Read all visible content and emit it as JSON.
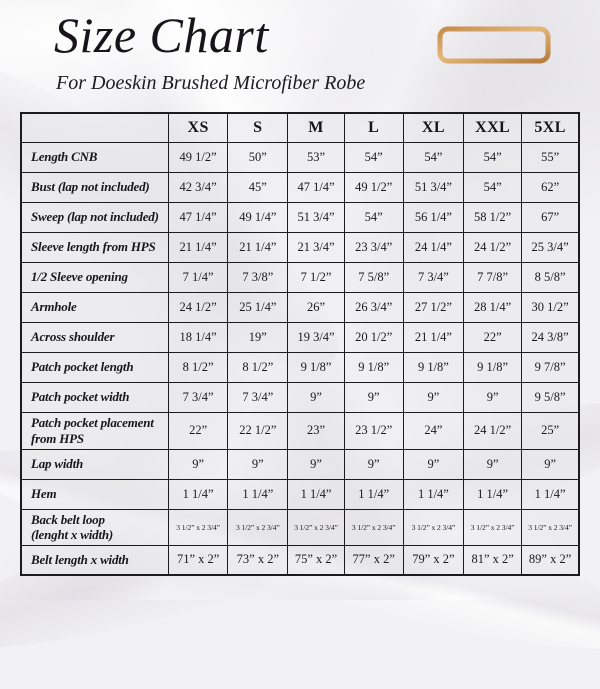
{
  "page": {
    "title": "Size Chart",
    "subtitle": "For Doeskin Brushed Microfiber Robe"
  },
  "colors": {
    "accent_gold_dark": "#b67c3e",
    "accent_gold_light": "#e4b87a",
    "table_border": "#1c1b1f",
    "background": "#f2f1f3",
    "text": "#1b1a1e"
  },
  "icons": {
    "ruler": "ruler-icon"
  },
  "chart_data": {
    "type": "table",
    "title": "Size Chart",
    "subtitle": "For Doeskin Brushed Microfiber Robe",
    "columns": [
      "",
      "XS",
      "S",
      "M",
      "L",
      "XL",
      "XXL",
      "5XL"
    ],
    "rows": [
      {
        "label": "Length CNB",
        "values": [
          "49 1/2”",
          "50”",
          "53”",
          "54”",
          "54”",
          "54”",
          "55”"
        ]
      },
      {
        "label": "Bust (lap not included)",
        "values": [
          "42 3/4”",
          "45”",
          "47 1/4”",
          "49 1/2”",
          "51 3/4”",
          "54”",
          "62”"
        ]
      },
      {
        "label": "Sweep (lap not included)",
        "values": [
          "47 1/4”",
          "49 1/4”",
          "51 3/4”",
          "54”",
          "56 1/4”",
          "58 1/2”",
          "67”"
        ]
      },
      {
        "label": "Sleeve length from HPS",
        "values": [
          "21 1/4”",
          "21 1/4”",
          "21 3/4”",
          "23 3/4”",
          "24 1/4”",
          "24 1/2”",
          "25 3/4”"
        ]
      },
      {
        "label": "1/2 Sleeve opening",
        "values": [
          "7 1/4”",
          "7 3/8”",
          "7 1/2”",
          "7 5/8”",
          "7 3/4”",
          "7 7/8”",
          "8 5/8”"
        ]
      },
      {
        "label": "Armhole",
        "values": [
          "24 1/2”",
          "25 1/4”",
          "26”",
          "26 3/4”",
          "27 1/2”",
          "28 1/4”",
          "30 1/2”"
        ]
      },
      {
        "label": "Across shoulder",
        "values": [
          "18 1/4”",
          "19”",
          "19 3/4”",
          "20 1/2”",
          "21 1/4”",
          "22”",
          "24 3/8”"
        ]
      },
      {
        "label": "Patch pocket length",
        "values": [
          "8 1/2”",
          "8 1/2”",
          "9 1/8”",
          "9 1/8”",
          "9 1/8”",
          "9 1/8”",
          "9 7/8”"
        ]
      },
      {
        "label": "Patch pocket width",
        "values": [
          "7 3/4”",
          "7 3/4”",
          "9”",
          "9”",
          "9”",
          "9”",
          "9 5/8”"
        ]
      },
      {
        "label": "Patch pocket placement\nfrom HPS",
        "values": [
          "22”",
          "22 1/2”",
          "23”",
          "23 1/2”",
          "24”",
          "24 1/2”",
          "25”"
        ]
      },
      {
        "label": "Lap width",
        "values": [
          "9”",
          "9”",
          "9”",
          "9”",
          "9”",
          "9”",
          "9”"
        ]
      },
      {
        "label": "Hem",
        "values": [
          "1 1/4”",
          "1 1/4”",
          "1 1/4”",
          "1 1/4”",
          "1 1/4”",
          "1 1/4”",
          "1 1/4”"
        ]
      },
      {
        "label": "Back belt loop\n(lenght x width)",
        "values": [
          "3 1/2” x 2 3/4”",
          "3 1/2” x 2 3/4”",
          "3 1/2” x 2 3/4”",
          "3 1/2” x 2 3/4”",
          "3 1/2” x 2 3/4”",
          "3 1/2” x 2 3/4”",
          "3 1/2” x 2 3/4”"
        ]
      },
      {
        "label": "Belt length x width",
        "values": [
          "71” x 2”",
          "73” x 2”",
          "75” x 2”",
          "77” x 2”",
          "79” x 2”",
          "81” x 2”",
          "89” x 2”"
        ]
      }
    ]
  }
}
